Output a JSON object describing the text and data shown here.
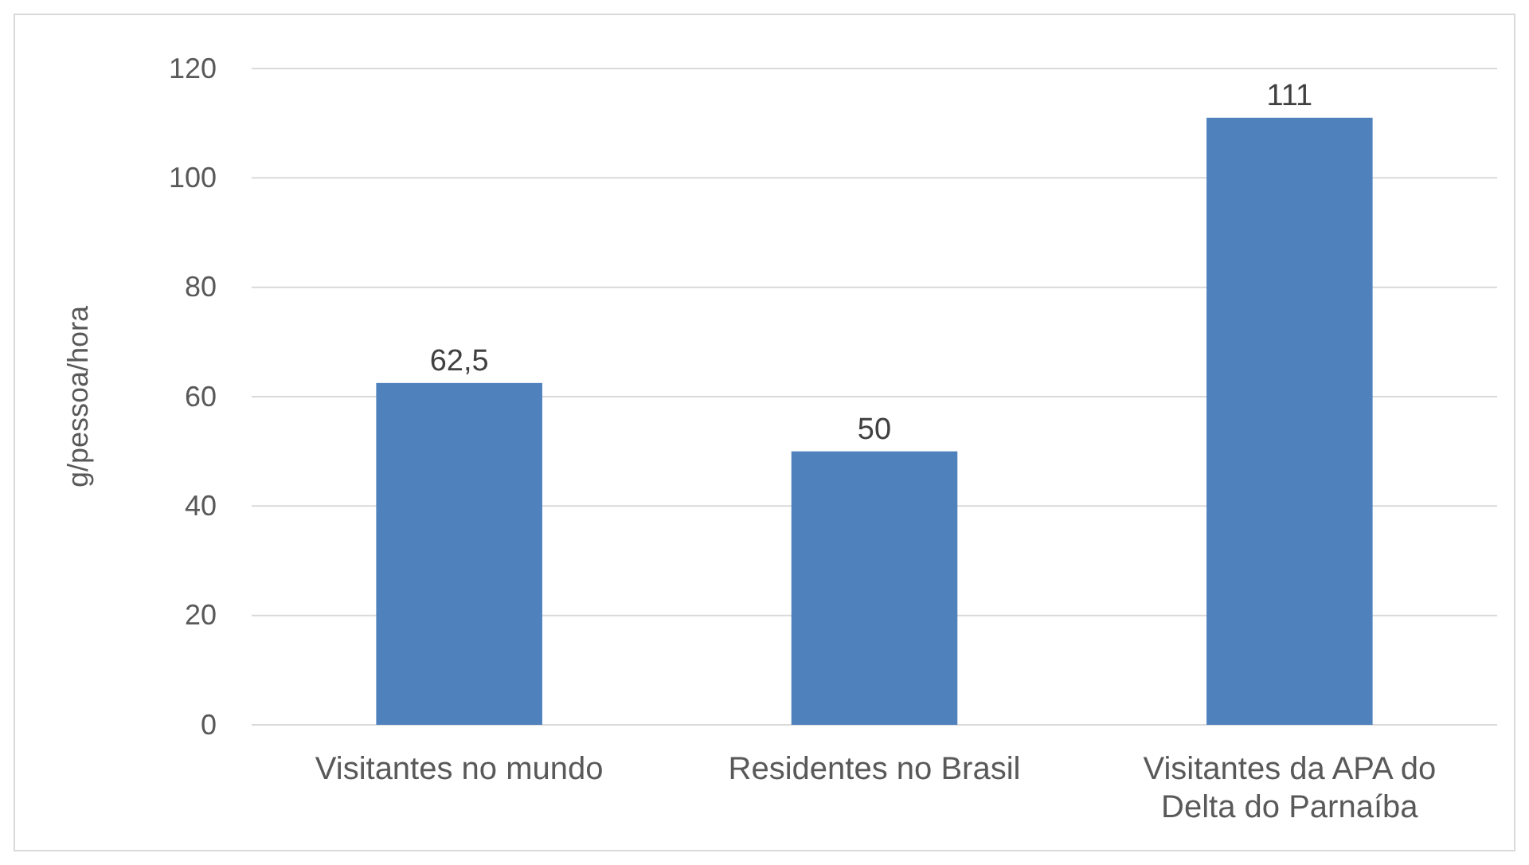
{
  "chart_data": {
    "type": "bar",
    "ylabel": "g/pessoa/hora",
    "categories": [
      "Visitantes no mundo",
      "Residentes no Brasil",
      "Visitantes da APA do Delta do Parnaíba"
    ],
    "values": [
      62.5,
      50,
      111
    ],
    "value_labels": [
      "62,5",
      "50",
      "111"
    ],
    "color": "#4f81bd",
    "ylim": [
      0,
      120
    ],
    "yticks": [
      0,
      20,
      40,
      60,
      80,
      100,
      120
    ],
    "grid": "y"
  }
}
